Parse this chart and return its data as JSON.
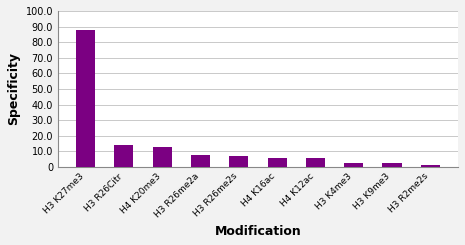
{
  "categories": [
    "H3 K27me3",
    "H3 R26Citr",
    "H4 K20me3",
    "H3 R26me2a",
    "H3 R26me2s",
    "H4 K16ac",
    "H4 K12ac",
    "H3 K4me3",
    "H3 K9me3",
    "H3 R2me2s"
  ],
  "values": [
    87.5,
    14.0,
    12.5,
    7.5,
    7.0,
    5.5,
    5.5,
    2.5,
    2.5,
    1.0
  ],
  "bar_color": "#7B0082",
  "xlabel": "Modification",
  "ylabel": "Specificity",
  "ylim": [
    0,
    100
  ],
  "yticks": [
    0,
    10,
    20,
    30,
    40,
    50,
    60,
    70,
    80,
    90,
    100
  ],
  "ytick_labels": [
    "0",
    "10.0",
    "20.0",
    "30.0",
    "40.0",
    "50.0",
    "60.0",
    "70.0",
    "80.0",
    "90.0",
    "100.0"
  ],
  "background_color": "#f2f2f2",
  "plot_bg_color": "#ffffff",
  "grid_color": "#c0c0c0",
  "xlabel_fontsize": 9,
  "ylabel_fontsize": 9,
  "tick_fontsize": 7,
  "xtick_fontsize": 6.5,
  "bar_width": 0.5
}
